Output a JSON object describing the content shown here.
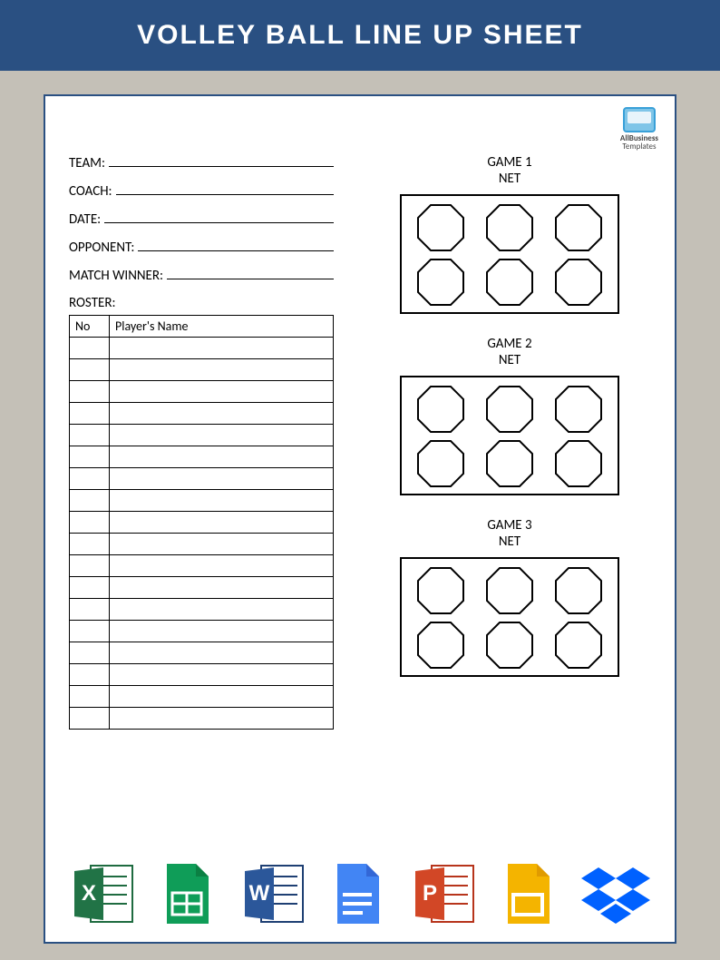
{
  "header": {
    "title": "VOLLEY BALL LINE UP SHEET"
  },
  "colors": {
    "header_bg": "#2a5082",
    "header_text": "#ffffff",
    "page_bg": "#c4c0b7",
    "sheet_border": "#2a5082",
    "line": "#000000"
  },
  "watermark": {
    "line1": "AllBusiness",
    "line2": "Templates"
  },
  "fields": [
    {
      "label": "TEAM:"
    },
    {
      "label": "COACH:"
    },
    {
      "label": "DATE:"
    },
    {
      "label": "OPPONENT:"
    },
    {
      "label": "MATCH WINNER:"
    }
  ],
  "roster": {
    "label": "ROSTER:",
    "columns": [
      "No",
      "Player's Name"
    ],
    "row_count": 18
  },
  "games": [
    {
      "title": "GAME 1",
      "subtitle": "NET",
      "positions": 6
    },
    {
      "title": "GAME 2",
      "subtitle": "NET",
      "positions": 6
    },
    {
      "title": "GAME 3",
      "subtitle": "NET",
      "positions": 6
    }
  ],
  "footer_icons": [
    {
      "name": "excel",
      "label": "Excel",
      "color": "#217346",
      "accent": "#1e6b40"
    },
    {
      "name": "gsheets",
      "label": "Google Sheets",
      "color": "#0f9d58",
      "accent": "#0b8043"
    },
    {
      "name": "word",
      "label": "Word",
      "color": "#2b579a",
      "accent": "#1e3f73"
    },
    {
      "name": "gdocs",
      "label": "Google Docs",
      "color": "#4285f4",
      "accent": "#3367d6"
    },
    {
      "name": "powerpoint",
      "label": "PowerPoint",
      "color": "#d24726",
      "accent": "#b7341b"
    },
    {
      "name": "gslides",
      "label": "Google Slides",
      "color": "#f4b400",
      "accent": "#e09b00"
    },
    {
      "name": "dropbox",
      "label": "Dropbox",
      "color": "#0061ff",
      "accent": "#0061ff"
    }
  ]
}
